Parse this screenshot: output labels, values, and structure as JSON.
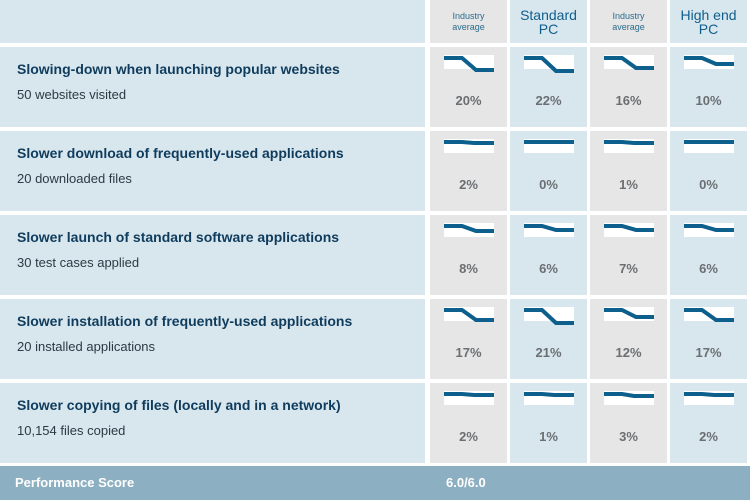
{
  "columns": [
    {
      "label_lines": [
        "Industry",
        "average"
      ],
      "style": "small",
      "bg": "gray"
    },
    {
      "label_lines": [
        "Standard",
        "PC"
      ],
      "style": "big",
      "bg": "blue"
    },
    {
      "label_lines": [
        "Industry",
        "average"
      ],
      "style": "small",
      "bg": "gray"
    },
    {
      "label_lines": [
        "High end",
        "PC"
      ],
      "style": "big",
      "bg": "blue"
    }
  ],
  "rows": [
    {
      "title": "Slowing-down when launching popular websites",
      "subtitle": "50 websites visited",
      "values": [
        "20%",
        "22%",
        "16%",
        "10%"
      ],
      "fractions": [
        0.2,
        0.22,
        0.16,
        0.1
      ]
    },
    {
      "title": "Slower download of frequently-used applications",
      "subtitle": "20 downloaded files",
      "values": [
        "2%",
        "0%",
        "1%",
        "0%"
      ],
      "fractions": [
        0.02,
        0.0,
        0.01,
        0.0
      ]
    },
    {
      "title": "Slower launch of standard software applications",
      "subtitle": "30 test cases applied",
      "values": [
        "8%",
        "6%",
        "7%",
        "6%"
      ],
      "fractions": [
        0.08,
        0.06,
        0.07,
        0.06
      ]
    },
    {
      "title": "Slower installation of frequently-used applications",
      "subtitle": "20 installed applications",
      "values": [
        "17%",
        "21%",
        "12%",
        "17%"
      ],
      "fractions": [
        0.17,
        0.21,
        0.12,
        0.17
      ]
    },
    {
      "title": "Slower copying of files (locally and in a network)",
      "subtitle": "10,154 files copied",
      "values": [
        "2%",
        "1%",
        "3%",
        "2%"
      ],
      "fractions": [
        0.02,
        0.01,
        0.03,
        0.02
      ]
    }
  ],
  "score": {
    "label": "Performance Score",
    "value": "6.0/6.0"
  },
  "colors": {
    "line": "#0d5f8c",
    "row_bg": "#d8e6ee",
    "gray_bg": "#e6e6e6",
    "score_bar": "#8dafc2"
  }
}
